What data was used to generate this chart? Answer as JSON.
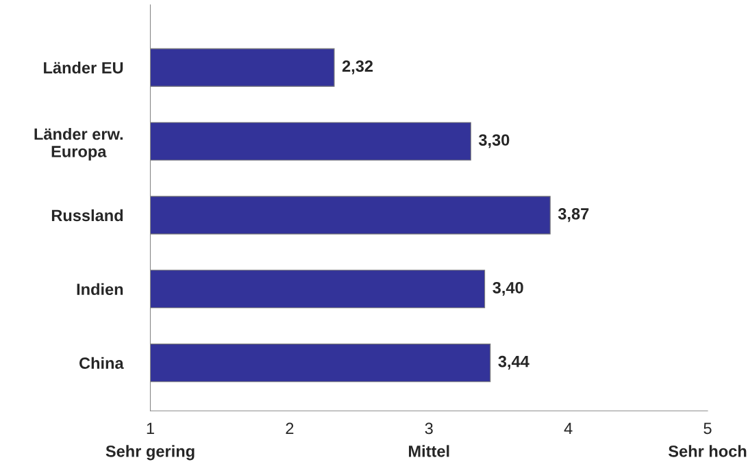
{
  "chart_data": {
    "type": "bar",
    "orientation": "horizontal",
    "categories": [
      "Länder EU",
      "Länder erw.\nEuropa",
      "Russland",
      "Indien",
      "China"
    ],
    "values": [
      2.32,
      3.3,
      3.87,
      3.4,
      3.44
    ],
    "value_labels": [
      "2,32",
      "3,30",
      "3,87",
      "3,40",
      "3,44"
    ],
    "color": "#333399",
    "xlim": [
      1,
      5
    ],
    "xticks": [
      1,
      2,
      3,
      4,
      5
    ],
    "grid": false,
    "legend": false,
    "annotations": [
      "Sehr gering",
      "Mittel",
      "Sehr hoch"
    ]
  }
}
